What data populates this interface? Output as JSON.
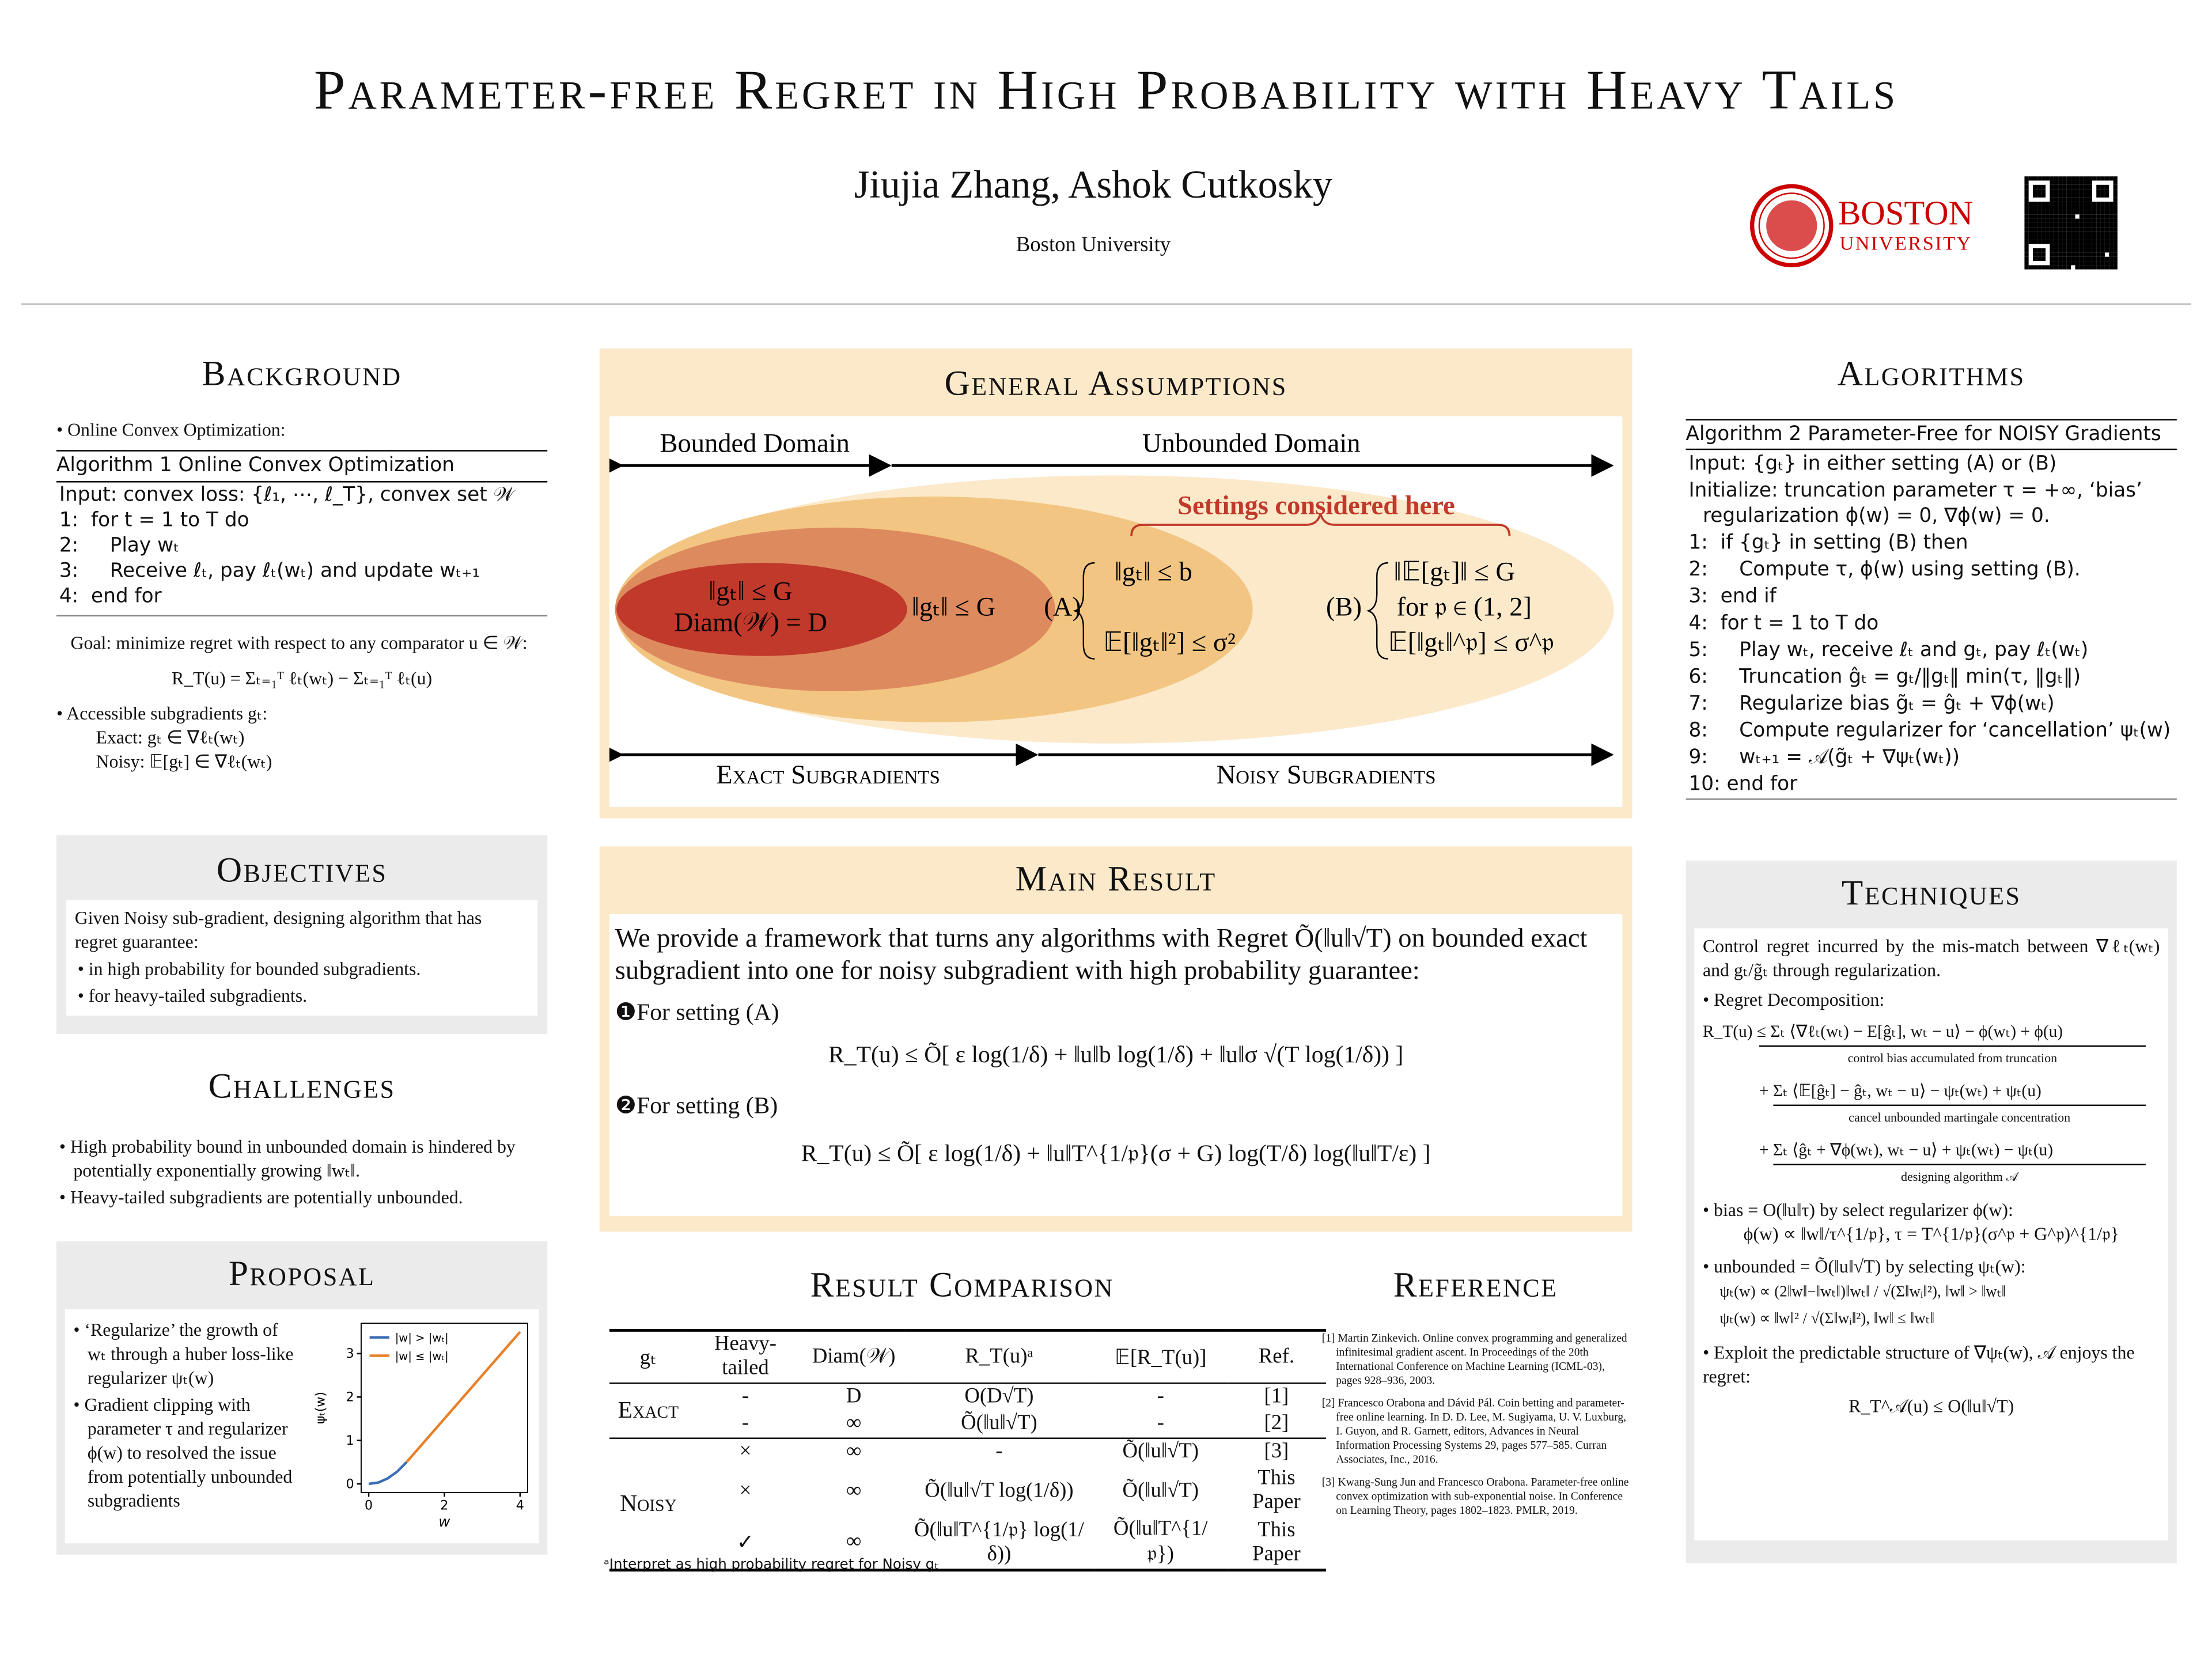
{
  "header": {
    "title": "Parameter-free Regret in High Probability with Heavy Tails",
    "authors": "Jiujia Zhang, Ashok Cutkosky",
    "affiliation": "Boston University",
    "logo_text": [
      "BOSTON",
      "UNIVERSITY"
    ]
  },
  "background": {
    "heading": "Background",
    "bullet": "• Online Convex Optimization:",
    "algorithm_title": "Algorithm 1 Online Convex Optimization",
    "algorithm_lines": [
      "Input: convex loss: {ℓ₁, ⋯, ℓ_T}, convex set 𝒲",
      "1:  for t = 1 to T do",
      "2:     Play wₜ",
      "3:     Receive ℓₜ, pay ℓₜ(wₜ) and update wₜ₊₁",
      "4:  end for"
    ],
    "goal": "Goal: minimize regret with respect to any comparator u ∈ 𝒲:",
    "formula": "R_T(u) = Σₜ₌₁ᵀ ℓₜ(wₜ) − Σₜ₌₁ᵀ ℓₜ(u)",
    "accessible": "• Accessible subgradients gₜ:",
    "exact": "Exact: gₜ ∈ ∇ℓₜ(wₜ)",
    "noisy": "Noisy: 𝔼[gₜ] ∈ ∇ℓₜ(wₜ)"
  },
  "objectives": {
    "heading": "Objectives",
    "text": "Given Noisy sub-gradient, designing algorithm that has regret guarantee:",
    "bullets": [
      "• in high probability for bounded subgradients.",
      "• for heavy-tailed subgradients."
    ]
  },
  "challenges": {
    "heading": "Challenges",
    "bullets": [
      "• High probability bound in unbounded domain is hindered by potentially exponentially growing ‖wₜ‖.",
      "• Heavy-tailed subgradients are potentially unbounded."
    ]
  },
  "proposal": {
    "heading": "Proposal",
    "bullets": [
      "• ‘Regularize’ the growth of wₜ through a huber loss-like regularizer ψₜ(w)",
      "• Gradient clipping with parameter τ and regularizer ϕ(w) to resolved the issue from potentially unbounded subgradients"
    ],
    "plot": {
      "type": "line",
      "xlabel": "w",
      "ylabel": "ψₜ(w)",
      "xlim": [
        -0.2,
        4.2
      ],
      "ylim": [
        -0.2,
        3.7
      ],
      "xticks": [
        0,
        2,
        4
      ],
      "yticks": [
        0,
        1,
        2,
        3
      ],
      "series": [
        {
          "name": "|w| > |wₜ|",
          "color": "#3a6db5",
          "x": [
            0,
            0.25,
            0.5,
            0.75,
            1
          ],
          "values": [
            0,
            0.03,
            0.125,
            0.28,
            0.5
          ]
        },
        {
          "name": "|w| ≤ |wₜ|",
          "color": "#e8802a",
          "x": [
            1,
            2,
            3,
            4
          ],
          "values": [
            0.5,
            1.5,
            2.5,
            3.5
          ]
        }
      ]
    }
  },
  "assumptions": {
    "heading": "General Assumptions",
    "bounded": "Bounded Domain",
    "unbounded": "Unbounded Domain",
    "settings": "Settings considered here",
    "inner": [
      "‖gₜ‖ ≤ G",
      "Diam(𝒲) = D"
    ],
    "middle": "‖gₜ‖ ≤ G",
    "a_label": "(A)",
    "a_lines": [
      "‖gₜ‖ ≤ b",
      "𝔼[‖gₜ‖²] ≤ σ²"
    ],
    "b_label": "(B)",
    "b_lines": [
      "‖𝔼[gₜ]‖ ≤ G",
      "for 𝔭 ∈ (1, 2]",
      "𝔼[‖gₜ‖^𝔭] ≤ σ^𝔭"
    ],
    "exact": "Exact Subgradients",
    "noisy": "Noisy Subgradients"
  },
  "main_result": {
    "heading": "Main Result",
    "intro": "We provide a framework that turns any algorithms with Regret Õ(‖u‖√T) on bounded exact subgradient into one for noisy subgradient with high probability guarantee:",
    "setting_a": "❶For setting (A)",
    "formula_a": "R_T(u) ≤ Õ[ ε log(1/δ) + ‖u‖b log(1/δ) + ‖u‖σ √(T log(1/δ)) ]",
    "setting_b": "❷For setting (B)",
    "formula_b": "R_T(u) ≤ Õ[ ε log(1/δ) + ‖u‖T^{1/𝔭}(σ + G) log(T/δ) log(‖u‖T/ε) ]"
  },
  "comparison": {
    "heading": "Result Comparison",
    "header": [
      "gₜ",
      "Heavy-tailed",
      "Diam(𝒲)",
      "R_T(u)ᵃ",
      "𝔼[R_T(u)]",
      "Ref."
    ],
    "groups": [
      {
        "label": "Exact",
        "rows": [
          [
            "-",
            "D",
            "O(D√T)",
            "-",
            "[1]"
          ],
          [
            "-",
            "∞",
            "Õ(‖u‖√T)",
            "-",
            "[2]"
          ]
        ]
      },
      {
        "label": "Noisy",
        "rows": [
          [
            "×",
            "∞",
            "-",
            "Õ(‖u‖√T)",
            "[3]"
          ],
          [
            "×",
            "∞",
            "Õ(‖u‖√T log(1/δ))",
            "Õ(‖u‖√T)",
            "This Paper"
          ],
          [
            "✓",
            "∞",
            "Õ(‖u‖T^{1/𝔭} log(1/δ))",
            "Õ(‖u‖T^{1/𝔭})",
            "This Paper"
          ]
        ]
      }
    ],
    "footnote": "ᵃInterpret as high probability regret for Noisy gₜ"
  },
  "reference": {
    "heading": "Reference",
    "items": [
      "[1] Martin Zinkevich. Online convex programming and generalized infinitesimal gradient ascent. In Proceedings of the 20th International Conference on Machine Learning (ICML-03), pages 928–936, 2003.",
      "[2] Francesco Orabona and Dávid Pál. Coin betting and parameter-free online learning. In D. D. Lee, M. Sugiyama, U. V. Luxburg, I. Guyon, and R. Garnett, editors, Advances in Neural Information Processing Systems 29, pages 577–585. Curran Associates, Inc., 2016.",
      "[3] Kwang-Sung Jun and Francesco Orabona. Parameter-free online convex optimization with sub-exponential noise. In Conference on Learning Theory, pages 1802–1823. PMLR, 2019."
    ]
  },
  "algorithms": {
    "heading": "Algorithms",
    "title": "Algorithm 2 Parameter-Free for NOISY Gradients",
    "lines": [
      "Input: {gₜ} in either setting (A) or (B)",
      "Initialize: truncation parameter τ = +∞, ‘bias’ regularization ϕ(w) = 0, ∇ϕ(w) = 0.",
      "1:  if {gₜ} in setting (B) then",
      "2:     Compute τ, ϕ(w) using setting (B).",
      "3:  end if",
      "4:  for t = 1 to T do",
      "5:     Play wₜ, receive ℓₜ and gₜ, pay ℓₜ(wₜ)",
      "6:     Truncation ĝₜ = gₜ/‖gₜ‖ min(τ, ‖gₜ‖)",
      "7:     Regularize bias g̃ₜ = ĝₜ + ∇ϕ(wₜ)",
      "8:     Compute regularizer for ‘cancellation’ ψₜ(w)",
      "9:     wₜ₊₁ = 𝒜(g̃ₜ + ∇ψₜ(wₜ))",
      "10: end for"
    ]
  },
  "techniques": {
    "heading": "Techniques",
    "intro": "Control regret incurred by the mis-match between ∇ℓₜ(wₜ) and gₜ/g̃ₜ through regularization.",
    "decomp": "• Regret Decomposition:",
    "terms": [
      {
        "expr": "R_T(u) ≤ Σₜ ⟨∇ℓₜ(wₜ) − E[ĝₜ], wₜ − u⟩ − ϕ(wₜ) + ϕ(u)",
        "note": "control bias accumulated from truncation"
      },
      {
        "expr": "+ Σₜ ⟨𝔼[ĝₜ] − ĝₜ, wₜ − u⟩ − ψₜ(wₜ) + ψₜ(u)",
        "note": "cancel unbounded martingale concentration"
      },
      {
        "expr": "+ Σₜ ⟨ĝₜ + ∇ϕ(wₜ), wₜ − u⟩ + ψₜ(wₜ) − ψₜ(u)",
        "note": "designing algorithm 𝒜"
      }
    ],
    "bias": "• bias = O(‖u‖τ) by select regularizer ϕ(w):",
    "bias_formula": "ϕ(w) ∝ ‖w‖/τ^{1/𝔭},   τ = T^{1/𝔭}(σ^𝔭 + G^𝔭)^{1/𝔭}",
    "unbounded": "• unbounded = Õ(‖u‖√T) by selecting ψₜ(w):",
    "psi_formula": [
      "ψₜ(w) ∝ (2‖w‖−‖wₜ‖)‖wₜ‖ / √(Σ‖wᵢ‖²),   ‖w‖ > ‖wₜ‖",
      "ψₜ(w) ∝ ‖w‖² / √(Σ‖wᵢ‖²),   ‖w‖ ≤ ‖wₜ‖"
    ],
    "exploit": "• Exploit the predictable structure of ∇ψₜ(w), 𝒜 enjoys the regret:",
    "final": "R_T^𝒜(u) ≤ O(‖u‖√T)"
  }
}
